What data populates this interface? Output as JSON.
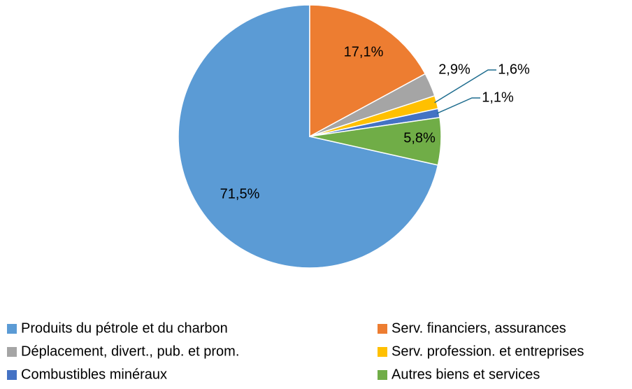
{
  "chart_data": {
    "type": "pie",
    "categories": [
      "Produits du pétrole et du charbon",
      "Serv. financiers, assurances",
      "Déplacement, divert., pub. et prom.",
      "Serv. profession. et entreprises",
      "Combustibles minéraux",
      "Autres biens et services"
    ],
    "values": [
      71.5,
      17.1,
      2.9,
      1.6,
      1.1,
      5.8
    ],
    "value_labels": [
      "71,5%",
      "17,1%",
      "2,9%",
      "1,6%",
      "1,1%",
      "5,8%"
    ],
    "colors": [
      "#5b9bd5",
      "#ed7d31",
      "#a5a5a5",
      "#ffc000",
      "#4472c4",
      "#70ad47"
    ],
    "legend": "bottom"
  }
}
